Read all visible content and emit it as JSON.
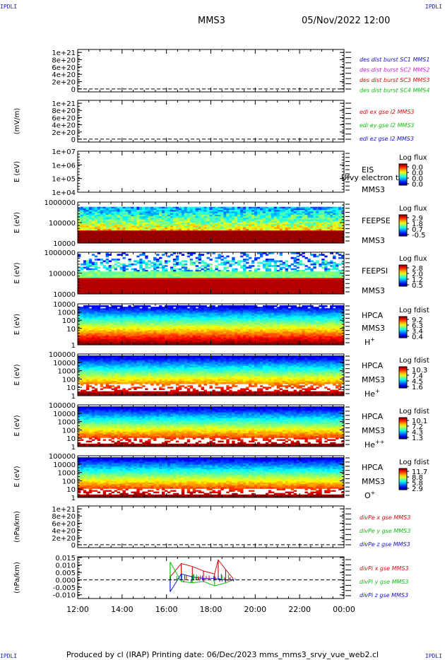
{
  "corners": {
    "tl": "IPDLI",
    "tr": "IPDLI",
    "bl": "IPDLI",
    "br": "IPDLI"
  },
  "header": {
    "mission": "MMS3",
    "datetime": "05/Nov/2022 12:00"
  },
  "footer": {
    "text": "Produced by cl (IRAP)   Printing date: 06/Dec/2023   mms_mms3_srvy_vue_web2.cl"
  },
  "xaxis": {
    "ticks": [
      "12:00",
      "14:00",
      "16:00",
      "18:00",
      "20:00",
      "22:00",
      "00:00"
    ]
  },
  "colors": {
    "blue": "#1515c8",
    "magenta": "#d020d0",
    "red": "#d01010",
    "green": "#10c010"
  },
  "panels": [
    {
      "id": "p1",
      "top": 70,
      "bot": 130,
      "ylabel": "",
      "yticks": [
        {
          "v": 1.0,
          "t": "1e+21"
        },
        {
          "v": 0.8,
          "t": "8e+20"
        },
        {
          "v": 0.6,
          "t": "6e+20"
        },
        {
          "v": 0.4,
          "t": "4e+20"
        },
        {
          "v": 0.2,
          "t": "2e+20"
        },
        {
          "v": 0,
          "t": "0"
        }
      ],
      "ymax": 1.08,
      "ymin": -0.08,
      "dashed_zero": true,
      "right_style": "legend",
      "legend": [
        {
          "text": "des dist burst SC1 MMS1",
          "color": "blue"
        },
        {
          "text": "des dist burst SC2 MMS2",
          "color": "magenta"
        },
        {
          "text": "des dist burst SC3 MMS3",
          "color": "red"
        },
        {
          "text": "des dist burst SC4 MMS4",
          "color": "green"
        }
      ]
    },
    {
      "id": "p2",
      "top": 142,
      "bot": 201,
      "ylabel": "(mV/m)",
      "yticks": [
        {
          "v": 1.0,
          "t": "1e+21"
        },
        {
          "v": 0.8,
          "t": "8e+20"
        },
        {
          "v": 0.6,
          "t": "6e+20"
        },
        {
          "v": 0.4,
          "t": "4e+20"
        },
        {
          "v": 0.2,
          "t": "2e+20"
        },
        {
          "v": 0,
          "t": "0"
        }
      ],
      "ymax": 1.08,
      "ymin": -0.08,
      "dashed_zero": true,
      "right_style": "legend",
      "legend": [
        {
          "text": "edi ex gse l2 MMS3",
          "color": "red"
        },
        {
          "text": "edi ey gse l2 MMS3",
          "color": "green"
        },
        {
          "text": "edi ez gse l2 MMS3",
          "color": "blue"
        }
      ]
    },
    {
      "id": "p3",
      "top": 214,
      "bot": 272,
      "ylabel": "E (eV)",
      "yticks": [
        {
          "v": 1.0,
          "t": "1e+07"
        },
        {
          "v": 0.667,
          "t": "1e+06"
        },
        {
          "v": 0.333,
          "t": "1e+05"
        },
        {
          "v": 0,
          "t": "1e+04"
        }
      ],
      "ymax": 1,
      "ymin": 0,
      "right_style": "spec",
      "spec": null,
      "rlabels": [
        {
          "t": "EIS",
          "dy": 30
        },
        {
          "t": "MMS3",
          "dy": 58
        }
      ],
      "overlay": "Ufvy electron to",
      "cbar": {
        "title": "Log flux",
        "ticks": [
          "0.0",
          "0.0",
          "0.0",
          "0.0"
        ]
      }
    },
    {
      "id": "p4",
      "top": 286,
      "bot": 344,
      "ylabel": "E (eV)",
      "yticks": [
        {
          "v": 1.0,
          "t": "1000000"
        },
        {
          "v": 0.5,
          "t": "100000"
        },
        {
          "v": 0,
          "t": "10000"
        }
      ],
      "ymax": 1,
      "ymin": 0,
      "right_style": "spec",
      "spec": "feepse",
      "rlabels": [
        {
          "t": "FEEPSE",
          "dy": 30
        },
        {
          "t": "MMS3",
          "dy": 58
        }
      ],
      "cbar": {
        "title": "Log flux",
        "ticks": [
          "2.9",
          "1.8",
          "0.7",
          "-0.5"
        ]
      }
    },
    {
      "id": "p5",
      "top": 357,
      "bot": 416,
      "ylabel": "E (eV)",
      "yticks": [
        {
          "v": 1.0,
          "t": "1000000"
        },
        {
          "v": 0.5,
          "t": "100000"
        },
        {
          "v": 0,
          "t": "10000"
        }
      ],
      "ymax": 1,
      "ymin": 0,
      "right_style": "spec",
      "spec": "feepsi",
      "rlabels": [
        {
          "t": "FEEPSI",
          "dy": 30
        },
        {
          "t": "MMS3",
          "dy": 58
        }
      ],
      "cbar": {
        "title": "Log flux",
        "ticks": [
          "2.8",
          "2.0",
          "1.2",
          "0.5"
        ]
      }
    },
    {
      "id": "p6",
      "top": 430,
      "bot": 488,
      "ylabel": "E (eV)",
      "yticks": [
        {
          "v": 1.0,
          "t": "10000"
        },
        {
          "v": 0.8,
          "t": "1000"
        },
        {
          "v": 0.6,
          "t": "100"
        },
        {
          "v": 0.4,
          "t": "10"
        },
        {
          "v": 0.0,
          "t": "1"
        }
      ],
      "ymax": 1,
      "ymin": 0,
      "right_style": "spec",
      "spec": "hpca_h",
      "rlabels": [
        {
          "t": "HPCA",
          "dy": 20
        },
        {
          "t": "MMS3",
          "dy": 38
        },
        {
          "t": "H",
          "dy": 58,
          "sup": "+"
        }
      ],
      "cbar": {
        "title": "Log fdist",
        "ticks": [
          "9.2",
          "6.3",
          "3.4",
          "0.4"
        ]
      }
    },
    {
      "id": "p7",
      "top": 501,
      "bot": 560,
      "ylabel": "E (eV)",
      "yticks": [
        {
          "v": 1.0,
          "t": "100000"
        },
        {
          "v": 0.8,
          "t": "10000"
        },
        {
          "v": 0.6,
          "t": "1000"
        },
        {
          "v": 0.4,
          "t": "100"
        },
        {
          "v": 0.2,
          "t": "10"
        },
        {
          "v": 0.0,
          "t": "1"
        }
      ],
      "ymax": 1,
      "ymin": 0,
      "right_style": "spec",
      "spec": "hpca_he",
      "rlabels": [
        {
          "t": "HPCA",
          "dy": 20
        },
        {
          "t": "MMS3",
          "dy": 40
        },
        {
          "t": "He",
          "dy": 60,
          "sup": "+"
        }
      ],
      "cbar": {
        "title": "Log fdist",
        "ticks": [
          "10.3",
          "7.4",
          "4.5",
          "1.6"
        ]
      }
    },
    {
      "id": "p8",
      "top": 573,
      "bot": 632,
      "ylabel": "E (eV)",
      "yticks": [
        {
          "v": 1.0,
          "t": "100000"
        },
        {
          "v": 0.8,
          "t": "10000"
        },
        {
          "v": 0.6,
          "t": "1000"
        },
        {
          "v": 0.4,
          "t": "100"
        },
        {
          "v": 0.2,
          "t": "10"
        },
        {
          "v": 0.0,
          "t": "1"
        }
      ],
      "ymax": 1,
      "ymin": 0,
      "right_style": "spec",
      "spec": "hpca_hepp",
      "rlabels": [
        {
          "t": "HPCA",
          "dy": 20
        },
        {
          "t": "MMS3",
          "dy": 40
        },
        {
          "t": "He",
          "dy": 60,
          "sup": "++"
        }
      ],
      "cbar": {
        "title": "Log fdist",
        "ticks": [
          "10.1",
          "7.2",
          "4.3",
          "1.3"
        ]
      }
    },
    {
      "id": "p9",
      "top": 645,
      "bot": 704,
      "ylabel": "E (eV)",
      "yticks": [
        {
          "v": 1.0,
          "t": "100000"
        },
        {
          "v": 0.8,
          "t": "10000"
        },
        {
          "v": 0.6,
          "t": "1000"
        },
        {
          "v": 0.4,
          "t": "100"
        },
        {
          "v": 0.2,
          "t": "10"
        },
        {
          "v": 0.0,
          "t": "1"
        }
      ],
      "ymax": 1,
      "ymin": 0,
      "right_style": "spec",
      "spec": "hpca_o",
      "rlabels": [
        {
          "t": "HPCA",
          "dy": 20
        },
        {
          "t": "MMS3",
          "dy": 40
        },
        {
          "t": "O",
          "dy": 60,
          "sup": "+"
        }
      ],
      "cbar": {
        "title": "Log fdist",
        "ticks": [
          "11.7",
          "8.8",
          "5.8",
          "2.9"
        ]
      }
    },
    {
      "id": "p10",
      "top": 716,
      "bot": 775,
      "ylabel": "(nPa/km)",
      "yticks": [
        {
          "v": 1.0,
          "t": "1e+21"
        },
        {
          "v": 0.8,
          "t": "8e+20"
        },
        {
          "v": 0.6,
          "t": "6e+20"
        },
        {
          "v": 0.4,
          "t": "4e+20"
        },
        {
          "v": 0.2,
          "t": "2e+20"
        },
        {
          "v": 0,
          "t": "0"
        }
      ],
      "ymax": 1.08,
      "ymin": -0.08,
      "dashed_zero": true,
      "right_style": "legend",
      "legend": [
        {
          "text": "divPe x gse MMS3",
          "color": "red"
        },
        {
          "text": "divPe y gse MMS3",
          "color": "green"
        },
        {
          "text": "divPe z gse MMS3",
          "color": "blue"
        }
      ]
    },
    {
      "id": "p11",
      "top": 788,
      "bot": 847,
      "ylabel": "(nPa/km)",
      "yticks": [
        {
          "v": 0.015,
          "t": "0.015"
        },
        {
          "v": 0.01,
          "t": "0.010"
        },
        {
          "v": 0.005,
          "t": "0.005"
        },
        {
          "v": 0.0,
          "t": "0.000"
        },
        {
          "v": -0.005,
          "t": "-0.005"
        },
        {
          "v": -0.01,
          "t": "-0.010"
        }
      ],
      "ymax": 0.0155,
      "ymin": -0.0125,
      "dashed_zero": true,
      "right_style": "legend",
      "divpi": true,
      "legend": [
        {
          "text": "divPi x gse MMS3",
          "color": "red"
        },
        {
          "text": "divPi y gse MMS3",
          "color": "green"
        },
        {
          "text": "divPi z gse MMS3",
          "color": "blue"
        }
      ]
    }
  ],
  "chart_data": {
    "type": "line",
    "title": "MMS3 05/Nov/2022 12:00",
    "xlabel": "",
    "x_ticks": [
      "12:00",
      "14:00",
      "16:00",
      "18:00",
      "20:00",
      "22:00",
      "00:00"
    ],
    "series": [
      {
        "name": "divPi x gse MMS3",
        "x": [
          "16:10",
          "16:40",
          "17:10",
          "17:40",
          "18:10",
          "18:20",
          "18:40",
          "19:00"
        ],
        "values": [
          0.002,
          0.011,
          0.009,
          0.006,
          0.004,
          0.0135,
          0.007,
          0.001
        ]
      },
      {
        "name": "divPi y gse MMS3",
        "x": [
          "16:10",
          "16:40",
          "17:10",
          "17:40",
          "18:10",
          "18:40",
          "19:00"
        ],
        "values": [
          0.012,
          -0.001,
          -0.002,
          -0.001,
          -0.004,
          -0.002,
          0.0
        ]
      },
      {
        "name": "divPi z gse MMS3",
        "x": [
          "16:10",
          "16:40",
          "17:10",
          "17:40",
          "18:10",
          "18:40",
          "19:00"
        ],
        "values": [
          -0.008,
          0.004,
          0.002,
          0.001,
          0.001,
          0.0,
          0.0
        ]
      }
    ]
  }
}
